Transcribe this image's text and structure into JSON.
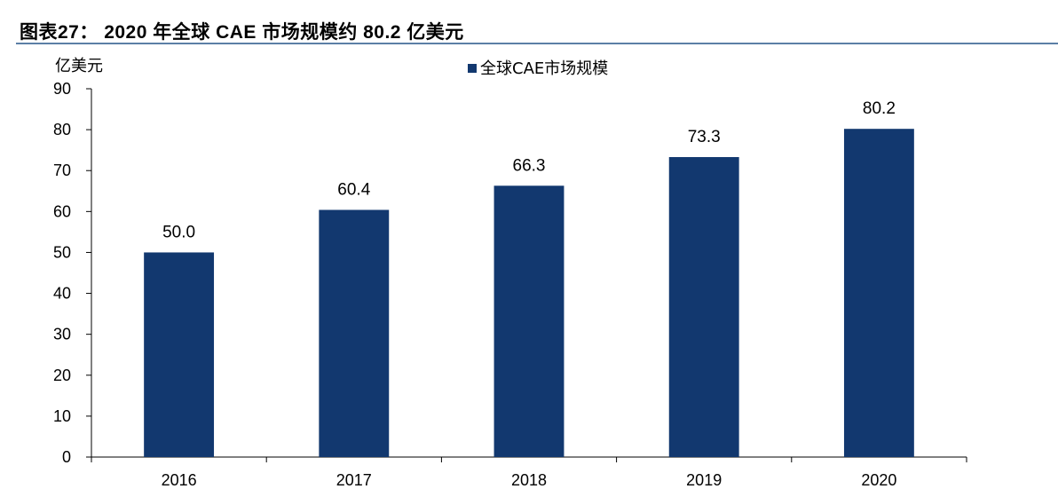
{
  "figure": {
    "title": "图表27： 2020 年全球 CAE 市场规模约 80.2 亿美元"
  },
  "chart_data": {
    "type": "bar",
    "categories": [
      "2016",
      "2017",
      "2018",
      "2019",
      "2020"
    ],
    "series": [
      {
        "name": "全球CAE市场规模",
        "values": [
          50.0,
          60.4,
          66.3,
          73.3,
          80.2
        ],
        "color": "#12386f"
      }
    ],
    "data_labels": [
      "50.0",
      "60.4",
      "66.3",
      "73.3",
      "80.2"
    ],
    "ylabel": "亿美元",
    "xlabel": "",
    "ylim": [
      0,
      90
    ],
    "yticks": [
      0,
      10,
      20,
      30,
      40,
      50,
      60,
      70,
      80,
      90
    ],
    "grid": false,
    "legend_position": "top-center"
  }
}
